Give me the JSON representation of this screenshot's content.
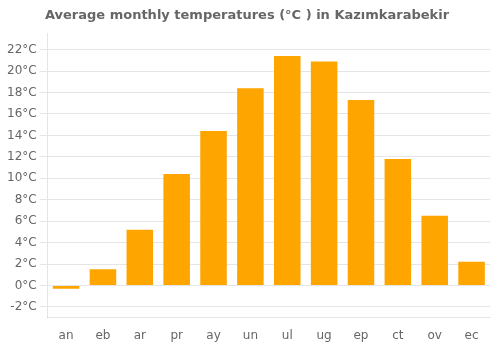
{
  "chart_data": {
    "type": "bar",
    "title": "Average monthly temperatures (°C ) in Kazımkarabekir",
    "categories": [
      "an",
      "eb",
      "ar",
      "pr",
      "ay",
      "un",
      "ul",
      "ug",
      "ep",
      "ct",
      "ov",
      "ec"
    ],
    "values": [
      -0.3,
      1.5,
      5.2,
      10.4,
      14.4,
      18.4,
      21.4,
      20.9,
      17.3,
      11.8,
      6.5,
      2.2
    ],
    "color": "#FFA500",
    "ylim": [
      -3.0,
      23.5
    ],
    "yticks": [
      {
        "value": -2,
        "label": "-2°C"
      },
      {
        "value": 0,
        "label": "0°C"
      },
      {
        "value": 2,
        "label": "2°C"
      },
      {
        "value": 4,
        "label": "4°C"
      },
      {
        "value": 6,
        "label": "6°C"
      },
      {
        "value": 8,
        "label": "8°C"
      },
      {
        "value": 10,
        "label": "10°C"
      },
      {
        "value": 12,
        "label": "12°C"
      },
      {
        "value": 14,
        "label": "14°C"
      },
      {
        "value": 16,
        "label": "16°C"
      },
      {
        "value": 18,
        "label": "18°C"
      },
      {
        "value": 20,
        "label": "20°C"
      },
      {
        "value": 22,
        "label": "22°C"
      }
    ],
    "grid": true
  }
}
